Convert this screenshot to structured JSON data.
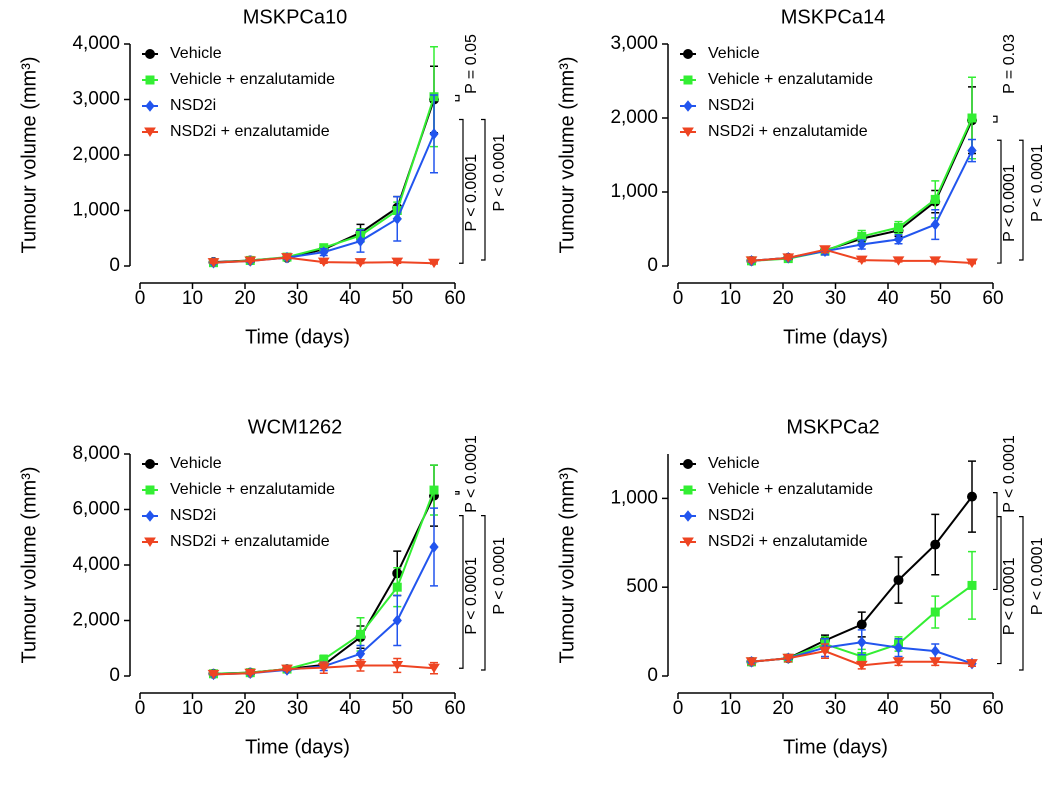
{
  "chart_data": [
    {
      "type": "line",
      "title": "MSKPCa10",
      "xlabel": "Time (days)",
      "ylabel": "Tumour volume (mm³)",
      "x": [
        14,
        21,
        28,
        35,
        42,
        49,
        56
      ],
      "xlim": [
        0,
        60
      ],
      "xticks": [
        0,
        10,
        20,
        30,
        40,
        50,
        60
      ],
      "ylim": [
        0,
        4000
      ],
      "yticks": [
        0,
        {
          "value": 1000,
          "label": "1,000"
        },
        {
          "value": 2000,
          "label": "2,000"
        },
        {
          "value": 3000,
          "label": "3,000"
        },
        {
          "value": 4000,
          "label": "4,000"
        }
      ],
      "legend": "upper left",
      "series": [
        {
          "name": "Vehicle",
          "color": "#000000",
          "marker": "circle",
          "values": [
            70,
            100,
            150,
            300,
            600,
            1050,
            3000
          ],
          "errors": [
            20,
            20,
            30,
            60,
            150,
            200,
            600
          ]
        },
        {
          "name": "Vehicle + enzalutamide",
          "color": "#33ee33",
          "marker": "square",
          "values": [
            60,
            100,
            160,
            330,
            550,
            1000,
            3050
          ],
          "errors": [
            20,
            20,
            30,
            60,
            120,
            150,
            900
          ]
        },
        {
          "name": "NSD2i",
          "color": "#2255ee",
          "marker": "diamond",
          "values": [
            60,
            90,
            150,
            250,
            450,
            850,
            2380
          ],
          "errors": [
            20,
            20,
            30,
            60,
            200,
            400,
            700
          ]
        },
        {
          "name": "NSD2i + enzalutamide",
          "color": "#ee4422",
          "marker": "triangle",
          "values": [
            60,
            90,
            150,
            70,
            60,
            70,
            50
          ],
          "errors": [
            10,
            10,
            20,
            20,
            15,
            20,
            15
          ]
        }
      ],
      "annotations": [
        "P = 0.05",
        "P < 0.0001",
        "P < 0.0001"
      ]
    },
    {
      "type": "line",
      "title": "MSKPCa14",
      "xlabel": "Time (days)",
      "ylabel": "Tumour volume (mm³)",
      "x": [
        14,
        21,
        28,
        35,
        42,
        49,
        56
      ],
      "xlim": [
        0,
        60
      ],
      "xticks": [
        0,
        10,
        20,
        30,
        40,
        50,
        60
      ],
      "ylim": [
        0,
        3000
      ],
      "yticks": [
        0,
        {
          "value": 1000,
          "label": "1,000"
        },
        {
          "value": 2000,
          "label": "2,000"
        },
        {
          "value": 3000,
          "label": "3,000"
        }
      ],
      "legend": "upper left",
      "series": [
        {
          "name": "Vehicle",
          "color": "#000000",
          "marker": "circle",
          "values": [
            70,
            110,
            210,
            370,
            480,
            870,
            1970
          ],
          "errors": [
            20,
            20,
            40,
            80,
            80,
            150,
            450
          ]
        },
        {
          "name": "Vehicle + enzalutamide",
          "color": "#33ee33",
          "marker": "square",
          "values": [
            70,
            100,
            200,
            400,
            520,
            900,
            2000
          ],
          "errors": [
            20,
            20,
            40,
            80,
            80,
            250,
            550
          ]
        },
        {
          "name": "NSD2i",
          "color": "#2255ee",
          "marker": "diamond",
          "values": [
            70,
            110,
            200,
            290,
            360,
            560,
            1560
          ],
          "errors": [
            20,
            20,
            50,
            60,
            60,
            200,
            150
          ]
        },
        {
          "name": "NSD2i + enzalutamide",
          "color": "#ee4422",
          "marker": "triangle",
          "values": [
            70,
            110,
            220,
            80,
            70,
            70,
            40
          ],
          "errors": [
            15,
            20,
            40,
            20,
            15,
            15,
            10
          ]
        }
      ],
      "annotations": [
        "P = 0.03",
        "P < 0.0001",
        "P < 0.0001"
      ]
    },
    {
      "type": "line",
      "title": "WCM1262",
      "xlabel": "Time (days)",
      "ylabel": "Tumour volume (mm³)",
      "x": [
        14,
        21,
        28,
        35,
        42,
        49,
        56
      ],
      "xlim": [
        0,
        60
      ],
      "xticks": [
        0,
        10,
        20,
        30,
        40,
        50,
        60
      ],
      "ylim": [
        0,
        8000
      ],
      "yticks": [
        0,
        {
          "value": 2000,
          "label": "2,000"
        },
        {
          "value": 4000,
          "label": "4,000"
        },
        {
          "value": 6000,
          "label": "6,000"
        },
        {
          "value": 8000,
          "label": "8,000"
        }
      ],
      "legend": "upper left",
      "series": [
        {
          "name": "Vehicle",
          "color": "#000000",
          "marker": "circle",
          "values": [
            80,
            120,
            250,
            400,
            1400,
            3700,
            6500
          ],
          "errors": [
            30,
            30,
            50,
            100,
            400,
            800,
            1100
          ]
        },
        {
          "name": "Vehicle + enzalutamide",
          "color": "#33ee33",
          "marker": "square",
          "values": [
            80,
            120,
            250,
            600,
            1500,
            3200,
            6700
          ],
          "errors": [
            30,
            30,
            50,
            150,
            600,
            700,
            900
          ]
        },
        {
          "name": "NSD2i",
          "color": "#2255ee",
          "marker": "diamond",
          "values": [
            60,
            100,
            220,
            350,
            800,
            2000,
            4650
          ],
          "errors": [
            30,
            30,
            50,
            150,
            300,
            900,
            1400
          ]
        },
        {
          "name": "NSD2i + enzalutamide",
          "color": "#ee4422",
          "marker": "triangle",
          "values": [
            60,
            100,
            250,
            300,
            380,
            380,
            280
          ],
          "errors": [
            30,
            30,
            50,
            200,
            200,
            250,
            200
          ]
        }
      ],
      "annotations": [
        "P < 0.0001",
        "P < 0.0001",
        "P < 0.0001"
      ]
    },
    {
      "type": "line",
      "title": "MSKPCa2",
      "xlabel": "Time (days)",
      "ylabel": "Tumour volume (mm³)",
      "x": [
        14,
        21,
        28,
        35,
        42,
        49,
        56
      ],
      "xlim": [
        0,
        60
      ],
      "xticks": [
        0,
        10,
        20,
        30,
        40,
        50,
        60
      ],
      "ylim": [
        0,
        1250
      ],
      "yticks": [
        0,
        500,
        {
          "value": 1000,
          "label": "1,000"
        }
      ],
      "legend": "upper left",
      "series": [
        {
          "name": "Vehicle",
          "color": "#000000",
          "marker": "circle",
          "values": [
            80,
            100,
            200,
            290,
            540,
            740,
            1010
          ],
          "errors": [
            15,
            20,
            30,
            70,
            130,
            170,
            200
          ]
        },
        {
          "name": "Vehicle + enzalutamide",
          "color": "#33ee33",
          "marker": "square",
          "values": [
            80,
            100,
            180,
            110,
            180,
            360,
            510
          ],
          "errors": [
            15,
            20,
            40,
            40,
            40,
            90,
            190
          ]
        },
        {
          "name": "NSD2i",
          "color": "#2255ee",
          "marker": "diamond",
          "values": [
            80,
            100,
            160,
            190,
            160,
            140,
            70
          ],
          "errors": [
            15,
            20,
            50,
            70,
            50,
            40,
            15
          ]
        },
        {
          "name": "NSD2i + enzalutamide",
          "color": "#ee4422",
          "marker": "triangle",
          "values": [
            80,
            100,
            140,
            60,
            80,
            80,
            70
          ],
          "errors": [
            15,
            20,
            40,
            20,
            20,
            20,
            15
          ]
        }
      ],
      "annotations": [
        "P < 0.0001",
        "P < 0.0001",
        "P < 0.0001"
      ]
    }
  ]
}
